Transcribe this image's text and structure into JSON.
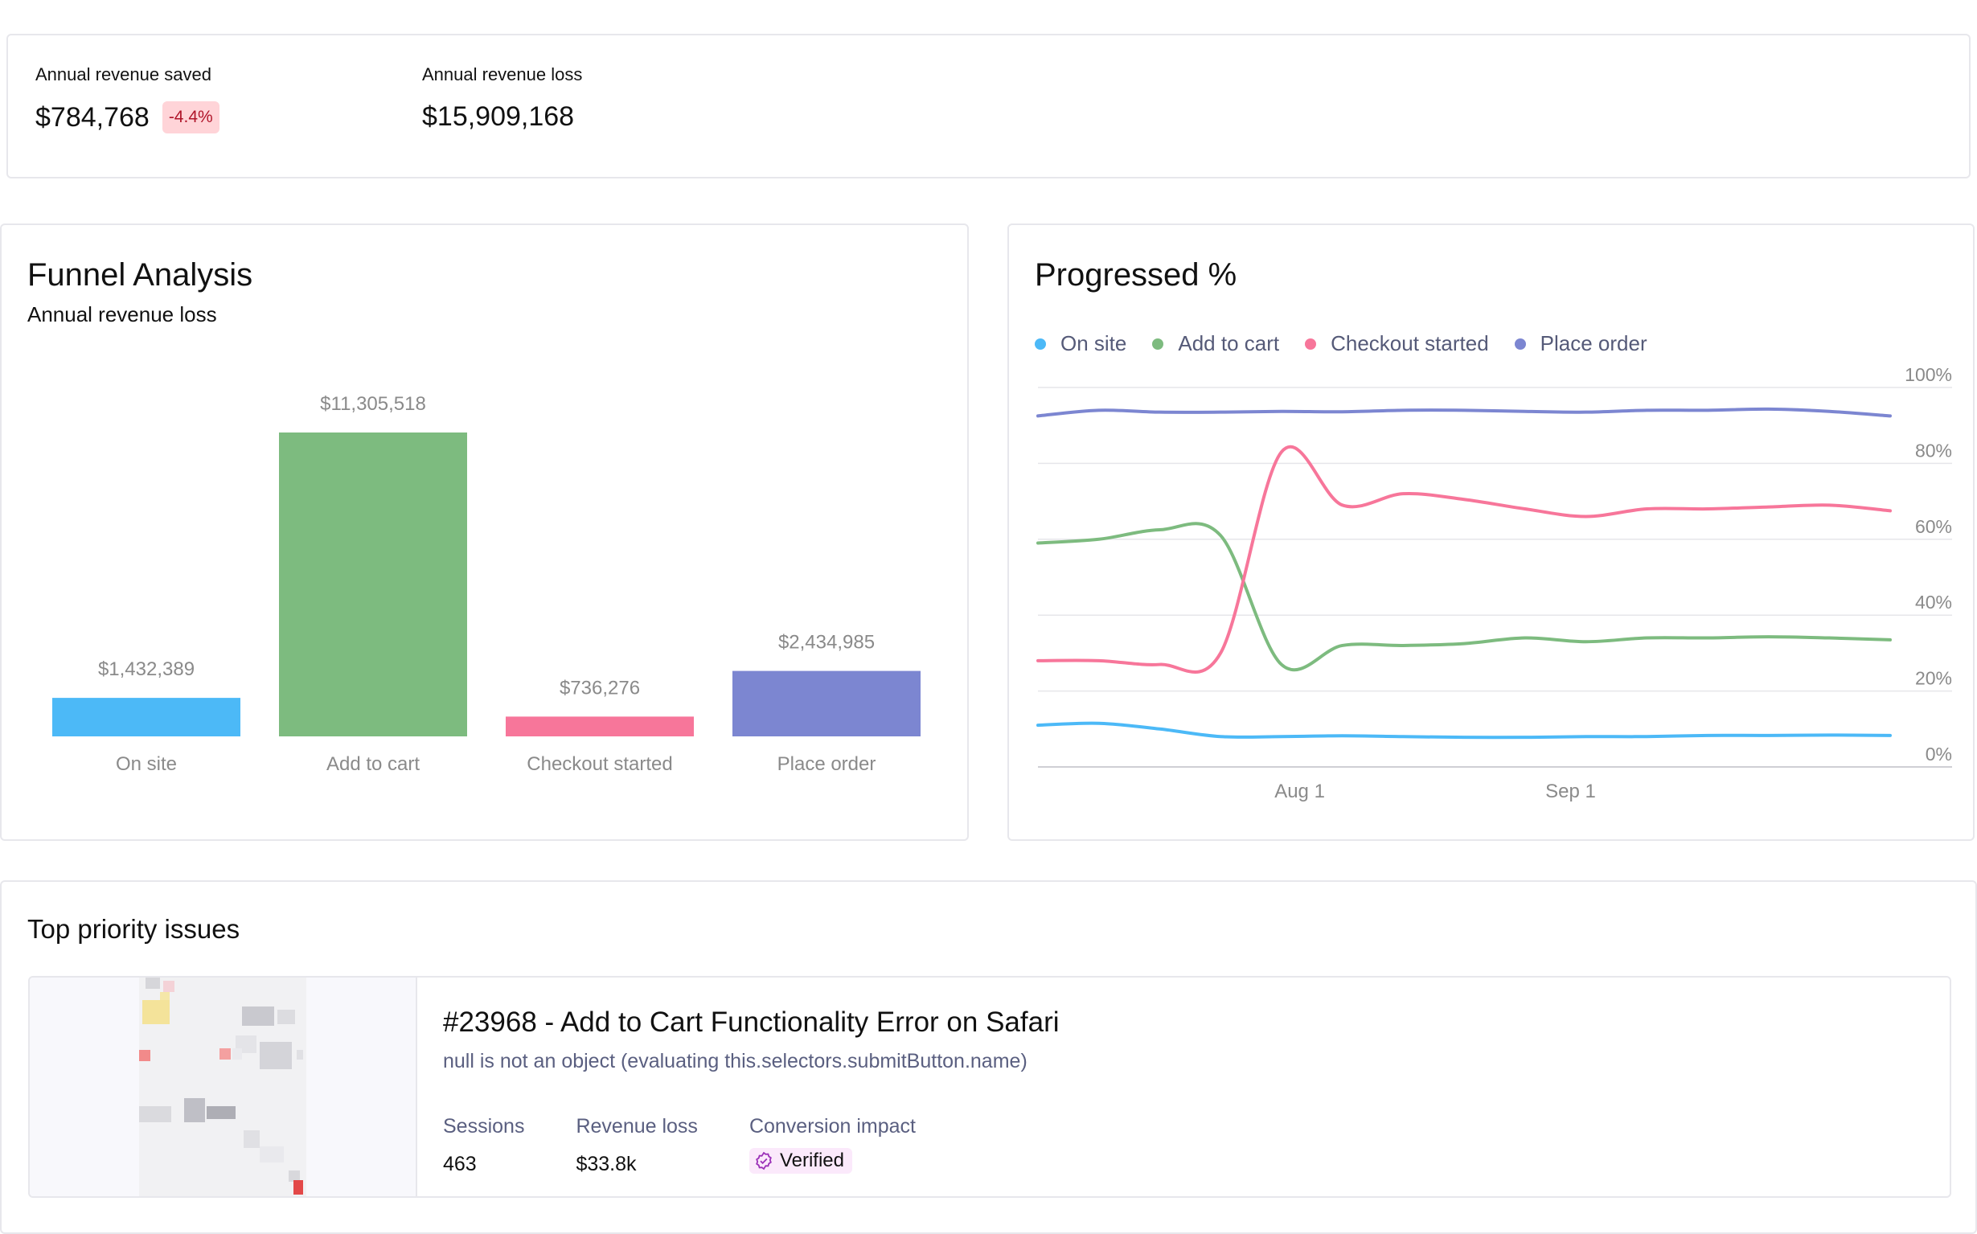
{
  "stats": {
    "saved_label": "Annual revenue saved",
    "saved_value": "$784,768",
    "saved_change": "-4.4%",
    "loss_label": "Annual revenue loss",
    "loss_value": "$15,909,168"
  },
  "funnel": {
    "title": "Funnel Analysis",
    "subtitle": "Annual revenue loss"
  },
  "progressed": {
    "title": "Progressed %"
  },
  "colors": {
    "on_site": "#4cb9f7",
    "add_to_cart": "#7dbb7f",
    "checkout_started": "#f7769a",
    "place_order": "#7c86d1"
  },
  "chart_data": [
    {
      "type": "bar",
      "categories": [
        "On site",
        "Add to cart",
        "Checkout started",
        "Place order"
      ],
      "values": [
        1432389,
        11305518,
        736276,
        2434985
      ],
      "value_labels": [
        "$1,432,389",
        "$11,305,518",
        "$736,276",
        "$2,434,985"
      ],
      "ylim": [
        0,
        11305518
      ]
    },
    {
      "type": "line",
      "x": [
        "Jul 1",
        "Jul 8",
        "Jul 15",
        "Jul 22",
        "Jul 29",
        "Aug 5",
        "Aug 12",
        "Aug 19",
        "Aug 26",
        "Sep 2",
        "Sep 9",
        "Sep 16",
        "Sep 23",
        "Sep 30",
        "Oct 7"
      ],
      "x_ticks": [
        "Aug 1",
        "Sep 1"
      ],
      "y_ticks": [
        "0%",
        "20%",
        "40%",
        "60%",
        "80%",
        "100%"
      ],
      "ylim": [
        0,
        100
      ],
      "grid": true,
      "legend": "top-left",
      "series": [
        {
          "name": "On site",
          "values": [
            11,
            11.5,
            10,
            8,
            8,
            8.2,
            8,
            7.8,
            7.8,
            8,
            8,
            8.3,
            8.3,
            8.4,
            8.3
          ]
        },
        {
          "name": "Add to cart",
          "values": [
            59,
            60,
            62.5,
            61,
            27,
            32,
            32,
            32.5,
            34,
            33,
            34,
            34,
            34.3,
            34,
            33.5
          ]
        },
        {
          "name": "Checkout started",
          "values": [
            28,
            28,
            27,
            30,
            83,
            69,
            72,
            70.5,
            68,
            66,
            68,
            68,
            68.5,
            69,
            67.5
          ]
        },
        {
          "name": "Place order",
          "values": [
            92.5,
            94,
            93.5,
            93.5,
            93.7,
            93.6,
            94,
            94,
            93.7,
            93.5,
            94,
            94,
            94.3,
            93.7,
            92.5
          ]
        }
      ]
    }
  ],
  "issues": {
    "title": "Top priority issues",
    "items": [
      {
        "title": "#23968 - Add to Cart Functionality Error on Safari",
        "error": "null is not an object (evaluating this.selectors.submitButton.name)",
        "sessions_label": "Sessions",
        "sessions_value": "463",
        "revenue_label": "Revenue loss",
        "revenue_value": "$33.8k",
        "impact_label": "Conversion impact",
        "impact_value": "Verified"
      }
    ]
  }
}
